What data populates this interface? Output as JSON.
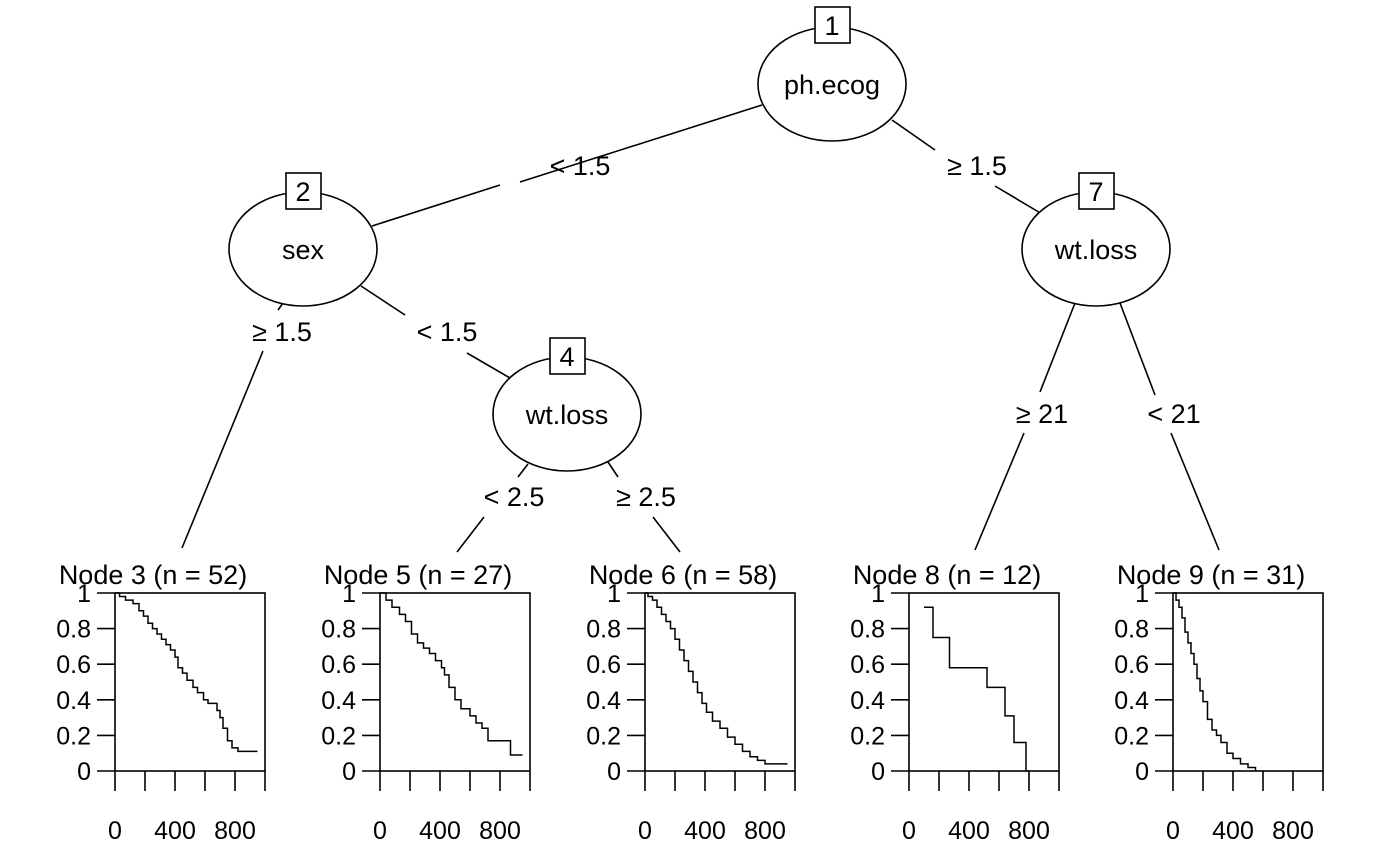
{
  "tree": {
    "inner_nodes": [
      {
        "id": "1",
        "variable": "ph.ecog"
      },
      {
        "id": "2",
        "variable": "sex"
      },
      {
        "id": "4",
        "variable": "wt.loss"
      },
      {
        "id": "7",
        "variable": "wt.loss"
      }
    ],
    "edges": [
      {
        "from": "1",
        "to": "2",
        "label": "< 1.5"
      },
      {
        "from": "1",
        "to": "7",
        "label": "≥ 1.5"
      },
      {
        "from": "2",
        "to": "3",
        "label": "≥ 1.5"
      },
      {
        "from": "2",
        "to": "4",
        "label": "< 1.5"
      },
      {
        "from": "4",
        "to": "5",
        "label": "< 2.5"
      },
      {
        "from": "4",
        "to": "6",
        "label": "≥ 2.5"
      },
      {
        "from": "7",
        "to": "8",
        "label": "≥ 21"
      },
      {
        "from": "7",
        "to": "9",
        "label": "< 21"
      }
    ]
  },
  "chart_data": {
    "type": "line",
    "y_tick_labels": [
      "0",
      "0.2",
      "0.4",
      "0.6",
      "0.8",
      "1"
    ],
    "x_tick_labels": [
      "0",
      "400",
      "800"
    ],
    "xlim": [
      0,
      1000
    ],
    "ylim": [
      0,
      1
    ],
    "panels": [
      {
        "title": "Node 3 (n = 52)",
        "x": [
          0,
          30,
          70,
          120,
          160,
          190,
          220,
          250,
          280,
          310,
          340,
          370,
          400,
          420,
          450,
          480,
          520,
          550,
          590,
          620,
          650,
          680,
          700,
          720,
          750,
          780,
          820,
          860,
          950
        ],
        "y": [
          1.0,
          0.98,
          0.96,
          0.94,
          0.9,
          0.87,
          0.83,
          0.8,
          0.77,
          0.74,
          0.71,
          0.68,
          0.64,
          0.58,
          0.55,
          0.51,
          0.47,
          0.44,
          0.4,
          0.38,
          0.38,
          0.34,
          0.3,
          0.24,
          0.17,
          0.13,
          0.11,
          0.11,
          0.11
        ]
      },
      {
        "title": "Node 5 (n = 27)",
        "x": [
          0,
          40,
          80,
          130,
          170,
          210,
          250,
          290,
          330,
          370,
          410,
          430,
          460,
          500,
          540,
          600,
          640,
          680,
          720,
          780,
          870,
          950
        ],
        "y": [
          1.0,
          0.96,
          0.92,
          0.88,
          0.84,
          0.77,
          0.72,
          0.69,
          0.66,
          0.62,
          0.58,
          0.54,
          0.47,
          0.4,
          0.35,
          0.31,
          0.27,
          0.24,
          0.17,
          0.17,
          0.09,
          0.09
        ]
      },
      {
        "title": "Node 6 (n = 58)",
        "x": [
          0,
          20,
          50,
          80,
          110,
          140,
          170,
          200,
          230,
          260,
          290,
          320,
          350,
          380,
          410,
          450,
          500,
          550,
          600,
          650,
          700,
          750,
          800,
          950
        ],
        "y": [
          1.0,
          0.98,
          0.96,
          0.92,
          0.88,
          0.84,
          0.8,
          0.74,
          0.68,
          0.62,
          0.56,
          0.5,
          0.44,
          0.38,
          0.33,
          0.28,
          0.24,
          0.19,
          0.15,
          0.11,
          0.08,
          0.06,
          0.04,
          0.04
        ]
      },
      {
        "title": "Node 8 (n = 12)",
        "x": [
          100,
          160,
          270,
          520,
          640,
          700,
          780,
          800
        ],
        "y": [
          0.92,
          0.75,
          0.58,
          0.47,
          0.31,
          0.16,
          0.0,
          0.0
        ]
      },
      {
        "title": "Node 9 (n = 31)",
        "x": [
          0,
          20,
          40,
          60,
          80,
          100,
          120,
          140,
          160,
          180,
          200,
          230,
          260,
          290,
          320,
          360,
          400,
          450,
          500,
          550
        ],
        "y": [
          1.0,
          0.96,
          0.92,
          0.86,
          0.78,
          0.72,
          0.66,
          0.6,
          0.52,
          0.45,
          0.39,
          0.29,
          0.23,
          0.2,
          0.16,
          0.1,
          0.07,
          0.04,
          0.02,
          0.0
        ]
      }
    ]
  }
}
